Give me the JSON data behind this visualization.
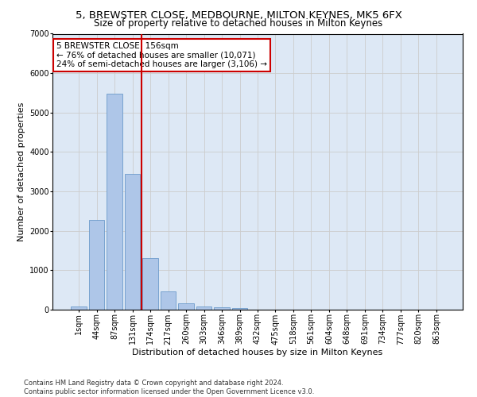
{
  "title": "5, BREWSTER CLOSE, MEDBOURNE, MILTON KEYNES, MK5 6FX",
  "subtitle": "Size of property relative to detached houses in Milton Keynes",
  "xlabel": "Distribution of detached houses by size in Milton Keynes",
  "ylabel": "Number of detached properties",
  "footer_line1": "Contains HM Land Registry data © Crown copyright and database right 2024.",
  "footer_line2": "Contains public sector information licensed under the Open Government Licence v3.0.",
  "annotation_title": "5 BREWSTER CLOSE: 156sqm",
  "annotation_line1": "← 76% of detached houses are smaller (10,071)",
  "annotation_line2": "24% of semi-detached houses are larger (3,106) →",
  "bar_labels": [
    "1sqm",
    "44sqm",
    "87sqm",
    "131sqm",
    "174sqm",
    "217sqm",
    "260sqm",
    "303sqm",
    "346sqm",
    "389sqm",
    "432sqm",
    "475sqm",
    "518sqm",
    "561sqm",
    "604sqm",
    "648sqm",
    "691sqm",
    "734sqm",
    "777sqm",
    "820sqm",
    "863sqm"
  ],
  "bar_values": [
    75,
    2280,
    5470,
    3440,
    1310,
    470,
    155,
    90,
    65,
    35,
    0,
    0,
    0,
    0,
    0,
    0,
    0,
    0,
    0,
    0,
    0
  ],
  "bar_color": "#aec6e8",
  "bar_edge_color": "#5a8fc4",
  "vline_color": "#cc0000",
  "ylim": [
    0,
    7000
  ],
  "yticks": [
    0,
    1000,
    2000,
    3000,
    4000,
    5000,
    6000,
    7000
  ],
  "grid_color": "#cccccc",
  "bg_color": "#dde8f5",
  "annotation_box_color": "#cc0000",
  "title_fontsize": 9.5,
  "subtitle_fontsize": 8.5,
  "ylabel_fontsize": 8,
  "xlabel_fontsize": 8,
  "tick_fontsize": 7,
  "annotation_fontsize": 7.5,
  "footer_fontsize": 6
}
